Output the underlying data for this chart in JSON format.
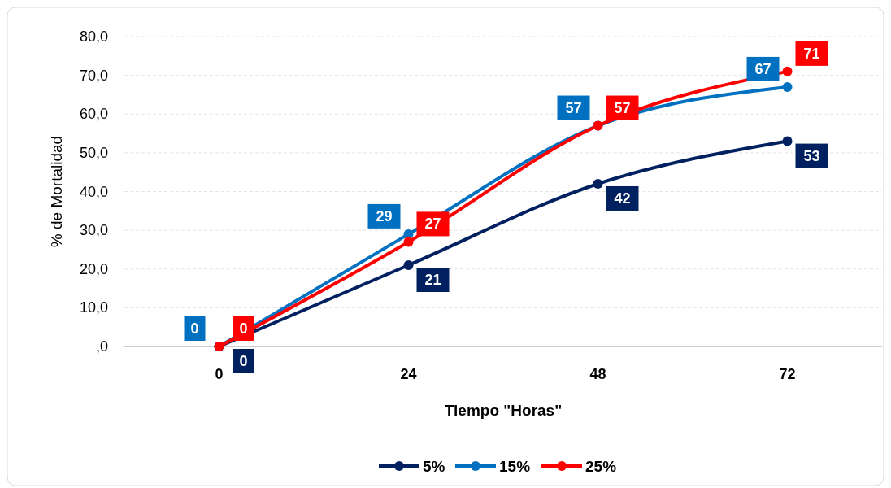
{
  "chart_data": {
    "type": "line",
    "xlabel": "Tiempo \"Horas\"",
    "ylabel": "% de Mortalidad",
    "categories": [
      "0",
      "24",
      "48",
      "72"
    ],
    "series": [
      {
        "name": "5%",
        "color": "#002060",
        "values": [
          0,
          21,
          42,
          53
        ]
      },
      {
        "name": "15%",
        "color": "#0070c0",
        "values": [
          0,
          29,
          57,
          67
        ]
      },
      {
        "name": "25%",
        "color": "#ff0000",
        "values": [
          0,
          27,
          57,
          71
        ]
      }
    ],
    "ylim": [
      0,
      80
    ],
    "yticks": [
      {
        "value": 0,
        "label": ",0"
      },
      {
        "value": 10,
        "label": "10,0"
      },
      {
        "value": 20,
        "label": "20,0"
      },
      {
        "value": 30,
        "label": "30,0"
      },
      {
        "value": 40,
        "label": "40,0"
      },
      {
        "value": 50,
        "label": "50,0"
      },
      {
        "value": 60,
        "label": "60,0"
      },
      {
        "value": 70,
        "label": "70,0"
      },
      {
        "value": 80,
        "label": "80,0"
      }
    ],
    "grid": "y",
    "legend": "bottom",
    "marker": "circle",
    "line_style": "solid",
    "data_labels": true
  }
}
